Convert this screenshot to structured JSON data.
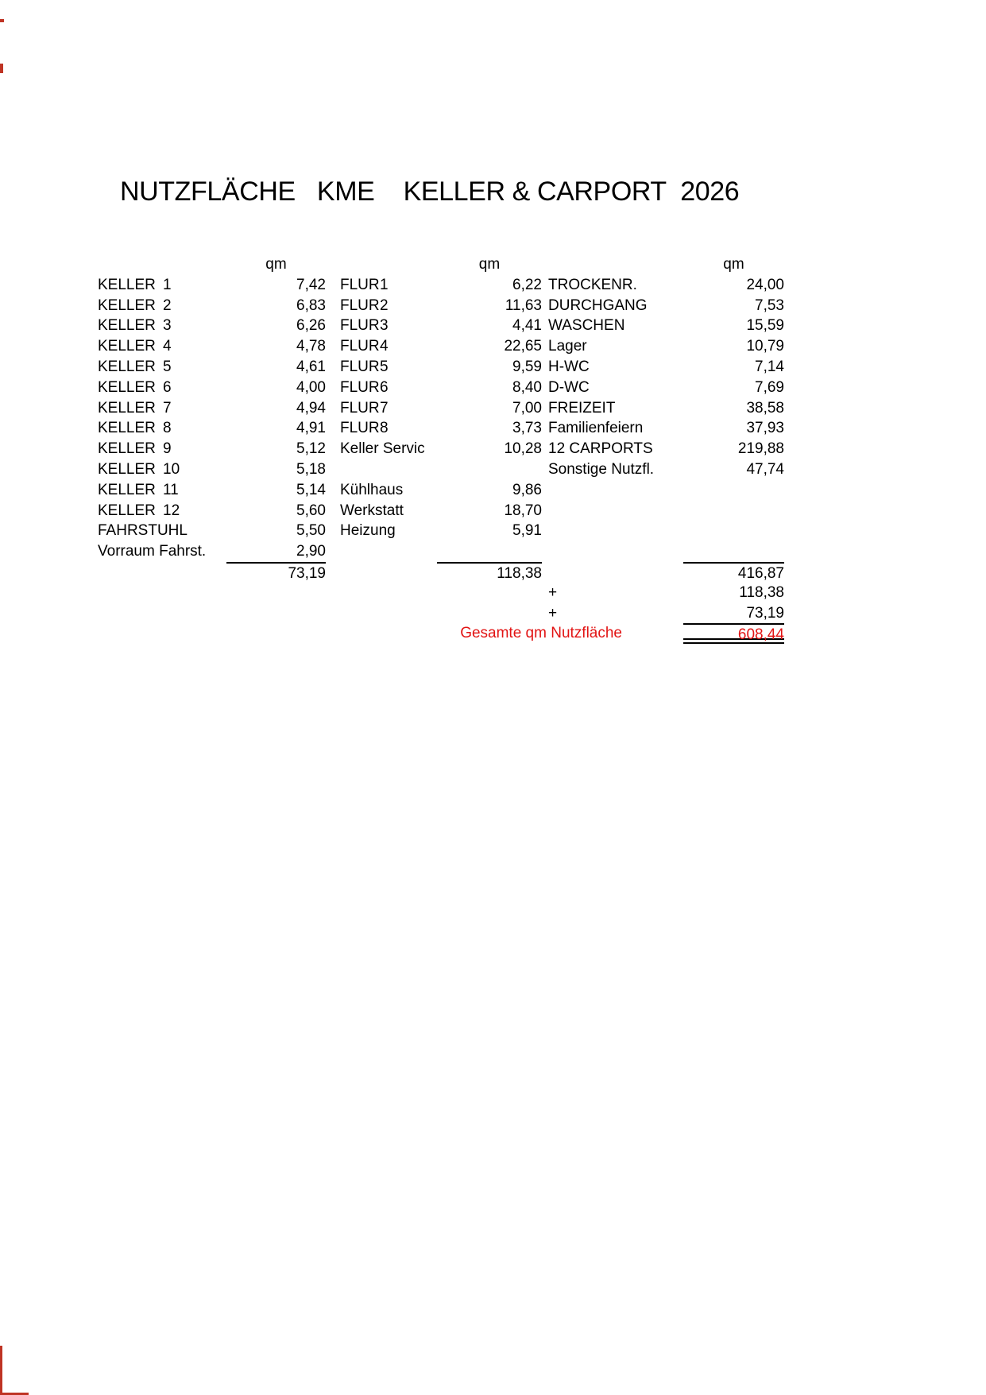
{
  "document": {
    "title": "NUTZFLÄCHE   KME    KELLER & CARPORT  2026",
    "unit_label": "qm",
    "colors": {
      "paper": "#ffffff",
      "text": "#000000",
      "total_red": "#e21414",
      "scan_mark_red": "#bf3424"
    }
  },
  "table": {
    "rows": [
      {
        "name1": "KELLER",
        "no1": "1",
        "area1": "7,42",
        "name2": "FLUR",
        "no2": "1",
        "area2": "6,22",
        "name3": "TROCKENR.",
        "area3": "24,00"
      },
      {
        "name1": "KELLER",
        "no1": "2",
        "area1": "6,83",
        "name2": "FLUR",
        "no2": "2",
        "area2": "11,63",
        "name3": "DURCHGANG",
        "area3": "7,53"
      },
      {
        "name1": "KELLER",
        "no1": "3",
        "area1": "6,26",
        "name2": "FLUR",
        "no2": "3",
        "area2": "4,41",
        "name3": "WASCHEN",
        "area3": "15,59"
      },
      {
        "name1": "KELLER",
        "no1": "4",
        "area1": "4,78",
        "name2": "FLUR",
        "no2": "4",
        "area2": "22,65",
        "name3": "Lager",
        "area3": "10,79"
      },
      {
        "name1": "KELLER",
        "no1": "5",
        "area1": "4,61",
        "name2": "FLUR",
        "no2": "5",
        "area2": "9,59",
        "name3": "H-WC",
        "area3": "7,14"
      },
      {
        "name1": "KELLER",
        "no1": "6",
        "area1": "4,00",
        "name2": "FLUR",
        "no2": "6",
        "area2": "8,40",
        "name3": "D-WC",
        "area3": "7,69"
      },
      {
        "name1": "KELLER",
        "no1": "7",
        "area1": "4,94",
        "name2": "FLUR",
        "no2": "7",
        "area2": "7,00",
        "name3": "FREIZEIT",
        "area3": "38,58"
      },
      {
        "name1": "KELLER",
        "no1": "8",
        "area1": "4,91",
        "name2": "FLUR",
        "no2": "8",
        "area2": "3,73",
        "name3": "Familienfeiern",
        "area3": "37,93"
      },
      {
        "name1": "KELLER",
        "no1": "9",
        "area1": "5,12",
        "name2": "Keller Servic",
        "no2": "",
        "area2": "10,28",
        "name3": "12 CARPORTS",
        "area3": "219,88"
      },
      {
        "name1": "KELLER",
        "no1": "10",
        "area1": "5,18",
        "name2": "",
        "no2": "",
        "area2": "",
        "name3": "Sonstige Nutzfl.",
        "area3": "47,74"
      },
      {
        "name1": "KELLER",
        "no1": "11",
        "area1": "5,14",
        "name2": "Kühlhaus",
        "no2": "",
        "area2": "9,86",
        "name3": "",
        "area3": ""
      },
      {
        "name1": "KELLER",
        "no1": "12",
        "area1": "5,60",
        "name2": "Werkstatt",
        "no2": "",
        "area2": "18,70",
        "name3": "",
        "area3": ""
      },
      {
        "name1": "FAHRSTUHL",
        "no1": "",
        "area1": "5,50",
        "name2": "Heizung",
        "no2": "",
        "area2": "5,91",
        "name3": "",
        "area3": ""
      },
      {
        "name1": "Vorraum Fahrst.",
        "no1": "",
        "area1": "2,90",
        "name2": "",
        "no2": "",
        "area2": "",
        "name3": "",
        "area3": ""
      }
    ],
    "subtotals": {
      "col1": "73,19",
      "col2": "118,38",
      "col3": "416,87"
    },
    "additions": [
      {
        "operator": "+",
        "value": "118,38"
      },
      {
        "operator": "+",
        "value": "73,19"
      }
    ],
    "grand_total": {
      "label": "Gesamte qm Nutzfläche",
      "value": "608,44"
    }
  }
}
